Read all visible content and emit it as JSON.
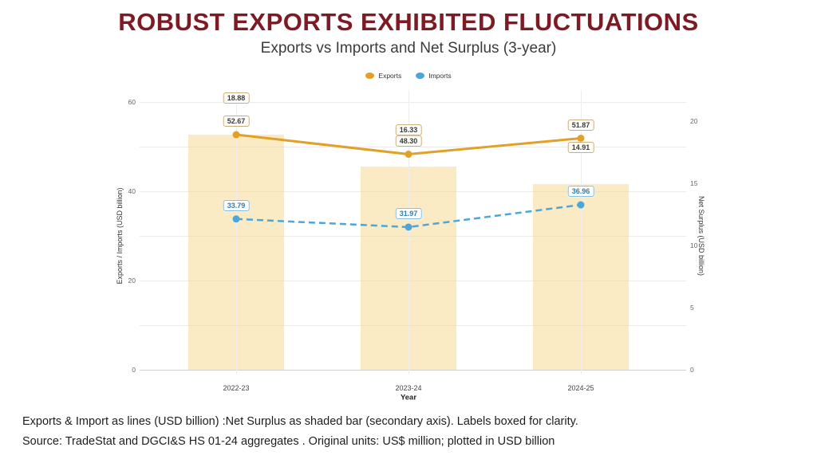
{
  "slide": {
    "title": "ROBUST EXPORTS EXHIBITED FLUCTUATIONS",
    "subtitle": "Exports vs Imports and Net Surplus (3-year)",
    "footnote": "Exports & Import as lines (USD billion) :Net Surplus as shaded bar (secondary axis). Labels boxed for clarity.",
    "source": "Source: TradeStat and DGCI&S HS 01-24 aggregates . Original units: US$ million; plotted in USD billion"
  },
  "colors": {
    "title": "#7D1A24",
    "exports": "#E2A026",
    "imports": "#4DA6D9",
    "bar_fill": "rgba(245,215,140,0.5)",
    "label_box_tan_border": "#C9AF7E",
    "label_box_blue_border": "#85BCE3"
  },
  "chart_data": {
    "type": "combo-line-bar",
    "categories": [
      "2022-23",
      "2023-24",
      "2024-25"
    ],
    "series": [
      {
        "name": "Exports",
        "chart": "line",
        "axis": "left",
        "linestyle": "solid",
        "color": "#E2A026",
        "values": [
          52.67,
          48.3,
          51.87
        ],
        "in_legend": true
      },
      {
        "name": "Imports",
        "chart": "line",
        "axis": "left",
        "linestyle": "dashed",
        "color": "#4DA6D9",
        "values": [
          33.79,
          31.97,
          36.96
        ],
        "in_legend": true
      },
      {
        "name": "Net Surplus",
        "chart": "bar",
        "axis": "right",
        "color": "rgba(245,215,140,0.5)",
        "values": [
          18.88,
          16.33,
          14.91
        ],
        "in_legend": false
      }
    ],
    "title": "ROBUST EXPORTS EXHIBITED FLUCTUATIONS",
    "subtitle": "Exports vs Imports and Net Surplus (3-year)",
    "xlabel": "Year",
    "ylabel_left": "Exports / Imports (USD billion)",
    "ylabel_right": "Net Surplus (USD billion)",
    "ylim_left": [
      0,
      60
    ],
    "ylim_right": [
      0,
      20
    ],
    "yticks_left": [
      0,
      20,
      40,
      60
    ],
    "yticks_right": [
      0,
      5,
      10,
      15,
      20
    ],
    "grid": true,
    "legend_position": "top-center",
    "labels_boxed": true
  }
}
